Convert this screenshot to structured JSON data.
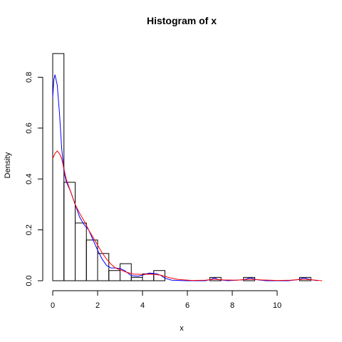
{
  "chart_data": {
    "type": "bar",
    "title": "Histogram of x",
    "xlabel": "x",
    "ylabel": "Density",
    "xlim": [
      0,
      12
    ],
    "ylim": [
      0,
      0.9
    ],
    "x_ticks": [
      0,
      2,
      4,
      6,
      8,
      10
    ],
    "y_ticks": [
      0.0,
      0.2,
      0.4,
      0.6,
      0.8
    ],
    "y_tick_labels": [
      "0.0",
      "0.2",
      "0.4",
      "0.6",
      "0.8"
    ],
    "grid": false,
    "bins": [
      {
        "start": 0.0,
        "end": 0.5,
        "density": 0.893
      },
      {
        "start": 0.5,
        "end": 1.0,
        "density": 0.387
      },
      {
        "start": 1.0,
        "end": 1.5,
        "density": 0.227
      },
      {
        "start": 1.5,
        "end": 2.0,
        "density": 0.16
      },
      {
        "start": 2.0,
        "end": 2.5,
        "density": 0.107
      },
      {
        "start": 2.5,
        "end": 3.0,
        "density": 0.04
      },
      {
        "start": 3.0,
        "end": 3.5,
        "density": 0.067
      },
      {
        "start": 3.5,
        "end": 4.0,
        "density": 0.013
      },
      {
        "start": 4.0,
        "end": 4.5,
        "density": 0.027
      },
      {
        "start": 4.5,
        "end": 5.0,
        "density": 0.04
      },
      {
        "start": 5.0,
        "end": 5.5,
        "density": 0.0
      },
      {
        "start": 5.5,
        "end": 6.0,
        "density": 0.0
      },
      {
        "start": 6.0,
        "end": 6.5,
        "density": 0.0
      },
      {
        "start": 6.5,
        "end": 7.0,
        "density": 0.0
      },
      {
        "start": 7.0,
        "end": 7.5,
        "density": 0.013
      },
      {
        "start": 7.5,
        "end": 8.0,
        "density": 0.0
      },
      {
        "start": 8.0,
        "end": 8.5,
        "density": 0.0
      },
      {
        "start": 8.5,
        "end": 9.0,
        "density": 0.013
      },
      {
        "start": 9.0,
        "end": 9.5,
        "density": 0.0
      },
      {
        "start": 9.5,
        "end": 10.0,
        "density": 0.0
      },
      {
        "start": 10.0,
        "end": 10.5,
        "density": 0.0
      },
      {
        "start": 10.5,
        "end": 11.0,
        "density": 0.0
      },
      {
        "start": 11.0,
        "end": 11.5,
        "density": 0.013
      }
    ],
    "series": [
      {
        "color": "#0000ff",
        "points": [
          [
            0,
            0.72
          ],
          [
            0.05,
            0.79
          ],
          [
            0.1,
            0.81
          ],
          [
            0.2,
            0.77
          ],
          [
            0.3,
            0.66
          ],
          [
            0.4,
            0.52
          ],
          [
            0.5,
            0.43
          ],
          [
            0.6,
            0.39
          ],
          [
            0.8,
            0.35
          ],
          [
            1.0,
            0.3
          ],
          [
            1.2,
            0.25
          ],
          [
            1.4,
            0.22
          ],
          [
            1.6,
            0.2
          ],
          [
            1.8,
            0.16
          ],
          [
            2.0,
            0.12
          ],
          [
            2.2,
            0.085
          ],
          [
            2.4,
            0.06
          ],
          [
            2.6,
            0.05
          ],
          [
            2.8,
            0.05
          ],
          [
            3.0,
            0.048
          ],
          [
            3.2,
            0.04
          ],
          [
            3.5,
            0.02
          ],
          [
            3.8,
            0.018
          ],
          [
            4.0,
            0.022
          ],
          [
            4.3,
            0.03
          ],
          [
            4.6,
            0.028
          ],
          [
            4.8,
            0.022
          ],
          [
            5.0,
            0.01
          ],
          [
            5.3,
            0.002
          ],
          [
            6.0,
            0.0
          ],
          [
            6.8,
            0.0
          ],
          [
            7.0,
            0.004
          ],
          [
            7.2,
            0.011
          ],
          [
            7.4,
            0.004
          ],
          [
            7.8,
            0.0
          ],
          [
            8.5,
            0.004
          ],
          [
            8.8,
            0.011
          ],
          [
            9.1,
            0.004
          ],
          [
            9.5,
            0.0
          ],
          [
            10.5,
            0.0
          ],
          [
            10.9,
            0.004
          ],
          [
            11.2,
            0.011
          ],
          [
            11.5,
            0.004
          ],
          [
            11.8,
            0.0
          ]
        ]
      },
      {
        "color": "#ff0000",
        "points": [
          [
            0,
            0.48
          ],
          [
            0.1,
            0.5
          ],
          [
            0.2,
            0.51
          ],
          [
            0.3,
            0.5
          ],
          [
            0.4,
            0.48
          ],
          [
            0.5,
            0.44
          ],
          [
            0.6,
            0.4
          ],
          [
            0.8,
            0.35
          ],
          [
            1.0,
            0.3
          ],
          [
            1.2,
            0.265
          ],
          [
            1.4,
            0.235
          ],
          [
            1.6,
            0.2
          ],
          [
            1.8,
            0.17
          ],
          [
            2.0,
            0.14
          ],
          [
            2.2,
            0.11
          ],
          [
            2.4,
            0.085
          ],
          [
            2.6,
            0.065
          ],
          [
            2.8,
            0.05
          ],
          [
            3.0,
            0.043
          ],
          [
            3.3,
            0.033
          ],
          [
            3.6,
            0.026
          ],
          [
            4.0,
            0.025
          ],
          [
            4.4,
            0.026
          ],
          [
            4.8,
            0.022
          ],
          [
            5.2,
            0.012
          ],
          [
            5.6,
            0.005
          ],
          [
            6.2,
            0.001
          ],
          [
            6.8,
            0.002
          ],
          [
            7.2,
            0.006
          ],
          [
            7.6,
            0.003
          ],
          [
            8.2,
            0.002
          ],
          [
            8.8,
            0.006
          ],
          [
            9.3,
            0.003
          ],
          [
            10.0,
            0.001
          ],
          [
            10.6,
            0.002
          ],
          [
            11.2,
            0.006
          ],
          [
            11.6,
            0.003
          ],
          [
            12.0,
            0.0
          ]
        ]
      }
    ]
  }
}
